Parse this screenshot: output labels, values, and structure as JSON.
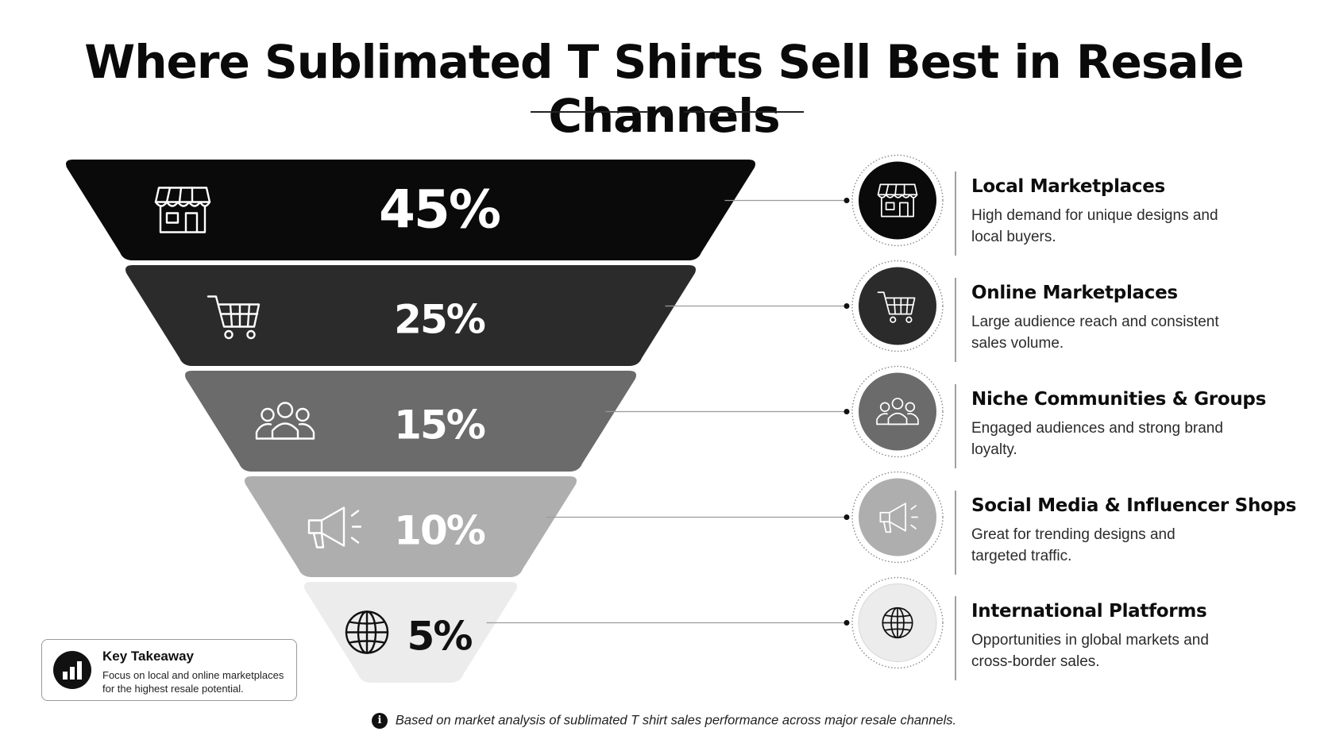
{
  "title": "Where Sublimated T Shirts Sell Best in Resale Channels",
  "chart_data": {
    "type": "funnel",
    "title": "Where Sublimated T Shirts Sell Best in Resale Channels",
    "unit": "%",
    "categories": [
      "Local Marketplaces",
      "Online Marketplaces",
      "Niche Communities & Groups",
      "Social Media & Influencer Shops",
      "International Platforms"
    ],
    "values": [
      45,
      25,
      15,
      10,
      5
    ],
    "labels": [
      "45%",
      "25%",
      "15%",
      "10%",
      "5%"
    ],
    "series": [
      {
        "values": [
          45,
          25,
          15,
          10,
          5
        ]
      }
    ]
  },
  "items": [
    {
      "title": "Local Marketplaces",
      "desc": "High demand for unique designs and local buyers.",
      "icon": "storefront-icon",
      "color": "#0a0a0a",
      "text_color": "#ffffff"
    },
    {
      "title": "Online Marketplaces",
      "desc": "Large audience reach and consistent sales volume.",
      "icon": "shopping-cart-icon",
      "color": "#2b2b2b",
      "text_color": "#ffffff"
    },
    {
      "title": "Niche Communities & Groups",
      "desc": "Engaged audiences and strong brand loyalty.",
      "icon": "people-group-icon",
      "color": "#6b6b6b",
      "text_color": "#ffffff"
    },
    {
      "title": "Social Media & Influencer Shops",
      "desc": "Great for trending designs and targeted traffic.",
      "icon": "megaphone-icon",
      "color": "#aeaeae",
      "text_color": "#ffffff"
    },
    {
      "title": "International Platforms",
      "desc": "Opportunities in global markets and cross-border sales.",
      "icon": "globe-icon",
      "color": "#ececec",
      "text_color": "#111111"
    }
  ],
  "takeaway": {
    "title": "Key Takeaway",
    "text": "Focus on local and online marketplaces for the highest resale potential.",
    "icon": "bar-chart-icon"
  },
  "footnote": {
    "icon": "info-icon",
    "glyph": "i",
    "text": "Based on market analysis of sublimated T shirt sales performance across major resale channels."
  }
}
